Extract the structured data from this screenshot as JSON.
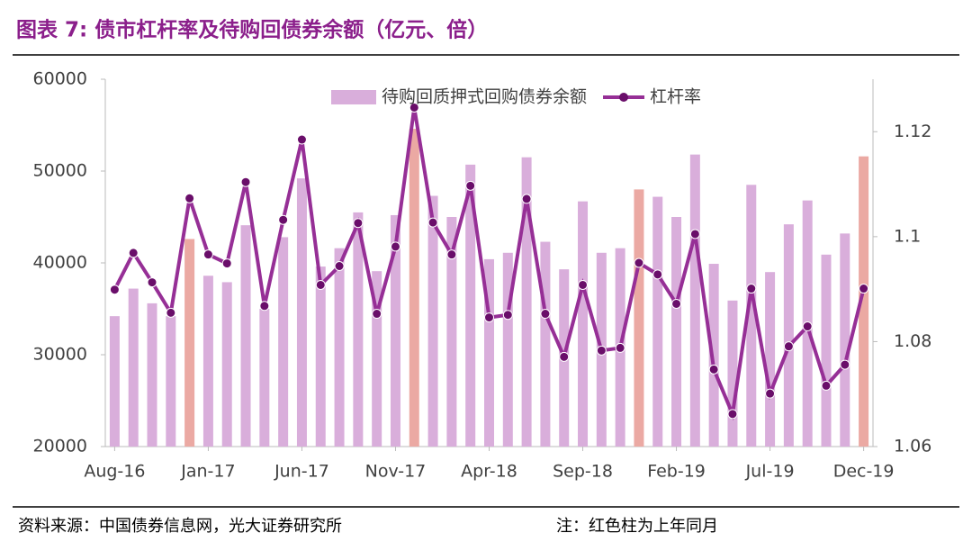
{
  "chart_data": {
    "type": "bar_line",
    "title": "图表 7: 债市杠杆率及待购回债券余额（亿元、倍）",
    "source": "资料来源：中国债券信息网，光大证券研究所",
    "note": "注：红色柱为上年同月",
    "categories": [
      "Aug-16",
      null,
      null,
      null,
      null,
      "Jan-17",
      null,
      null,
      null,
      null,
      "Jun-17",
      null,
      null,
      null,
      null,
      "Nov-17",
      null,
      null,
      null,
      null,
      "Apr-18",
      null,
      null,
      null,
      null,
      "Sep-18",
      null,
      null,
      null,
      null,
      "Feb-19",
      null,
      null,
      null,
      null,
      "Jul-19",
      null,
      null,
      null,
      null,
      "Dec-19"
    ],
    "series": [
      {
        "name": "待购回质押式回购债券余额",
        "type": "bar",
        "color": "#d9aedb",
        "colors": [
          "#d9aedb",
          "#d9aedb",
          "#d9aedb",
          "#d9aedb",
          "#eba9a3",
          "#d9aedb",
          "#d9aedb",
          "#d9aedb",
          "#d9aedb",
          "#d9aedb",
          "#d9aedb",
          "#d9aedb",
          "#d9aedb",
          "#d9aedb",
          "#d9aedb",
          "#d9aedb",
          "#eba9a3",
          "#d9aedb",
          "#d9aedb",
          "#d9aedb",
          "#d9aedb",
          "#d9aedb",
          "#d9aedb",
          "#d9aedb",
          "#d9aedb",
          "#d9aedb",
          "#d9aedb",
          "#d9aedb",
          "#eba9a3",
          "#d9aedb",
          "#d9aedb",
          "#d9aedb",
          "#d9aedb",
          "#d9aedb",
          "#d9aedb",
          "#d9aedb",
          "#d9aedb",
          "#d9aedb",
          "#d9aedb",
          "#d9aedb",
          "#eba9a3"
        ],
        "values": [
          34200,
          37200,
          35600,
          34200,
          42600,
          38600,
          37900,
          44100,
          35000,
          42800,
          49200,
          39600,
          41600,
          45500,
          39100,
          45200,
          54600,
          47300,
          45000,
          50700,
          40400,
          41100,
          51500,
          42300,
          39300,
          46700,
          41100,
          41600,
          48000,
          47200,
          45000,
          51800,
          39900,
          35900,
          48500,
          39000,
          44200,
          46800,
          40900,
          43200,
          51600
        ]
      },
      {
        "name": "杠杆率",
        "type": "line",
        "axis": "y2",
        "color": "#962f96",
        "values": [
          1.0899,
          1.0969,
          1.0913,
          1.0855,
          1.1073,
          1.0966,
          1.0949,
          1.1104,
          1.0868,
          1.1032,
          1.1185,
          1.0908,
          1.0944,
          1.1026,
          1.0853,
          1.0981,
          1.1246,
          1.1027,
          1.0966,
          1.1097,
          1.0846,
          1.0851,
          1.1072,
          1.0853,
          1.0771,
          1.0908,
          1.0783,
          1.0788,
          1.095,
          1.0928,
          1.0872,
          1.1005,
          1.0747,
          1.0662,
          1.0901,
          1.0701,
          1.0791,
          1.0829,
          1.0716,
          1.0756,
          1.0901
        ]
      }
    ],
    "ylim": [
      20000,
      60000
    ],
    "yticks": [
      20000,
      30000,
      40000,
      50000,
      60000
    ],
    "y2lim": [
      1.06,
      1.13
    ],
    "y2ticks": [
      1.06,
      1.08,
      1.1,
      1.12
    ],
    "legend": "top"
  }
}
